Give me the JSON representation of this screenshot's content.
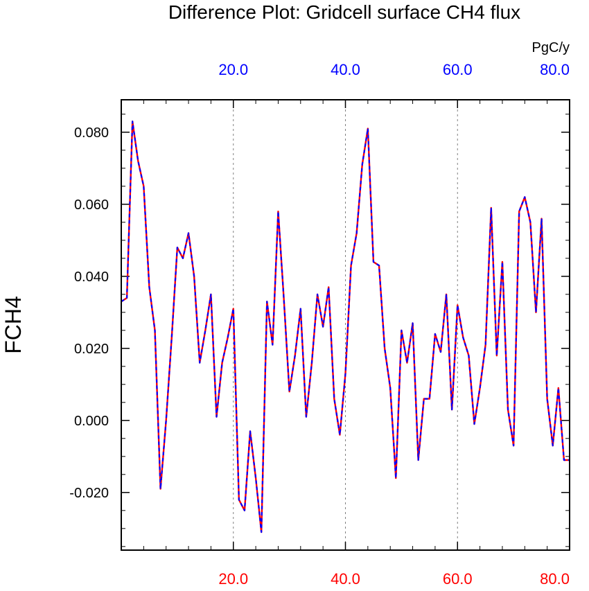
{
  "title": "Difference Plot: Gridcell surface CH4 flux",
  "units": "PgC/y",
  "colors": {
    "series_a": "#ff0000",
    "series_b": "#0000ff",
    "axis": "#000000",
    "grid": "#808080"
  },
  "chart_data": {
    "type": "line",
    "title": "Difference Plot: Gridcell surface CH4 flux",
    "ylabel": "FCH4",
    "xlim": [
      0,
      80
    ],
    "ylim": [
      -0.036,
      0.089
    ],
    "y_ticks": [
      {
        "value": -0.02,
        "label": "-0.020"
      },
      {
        "value": 0.0,
        "label": "0.000"
      },
      {
        "value": 0.02,
        "label": "0.020"
      },
      {
        "value": 0.04,
        "label": "0.040"
      },
      {
        "value": 0.06,
        "label": "0.060"
      },
      {
        "value": 0.08,
        "label": "0.080"
      }
    ],
    "x_ticks_bottom": [
      {
        "value": 20,
        "label": "20.0"
      },
      {
        "value": 40,
        "label": "40.0"
      },
      {
        "value": 60,
        "label": "60.0"
      },
      {
        "value": 80,
        "label": "80.0"
      }
    ],
    "x_ticks_top": [
      {
        "value": 20,
        "label": "20.0"
      },
      {
        "value": 40,
        "label": "40.0"
      },
      {
        "value": 60,
        "label": "60.0"
      },
      {
        "value": 80,
        "label": "80.0"
      }
    ],
    "grid_x": [
      20,
      40,
      60
    ],
    "x": [
      0,
      1,
      2,
      3,
      4,
      5,
      6,
      7,
      8,
      9,
      10,
      11,
      12,
      13,
      14,
      15,
      16,
      17,
      18,
      19,
      20,
      21,
      22,
      23,
      24,
      25,
      26,
      27,
      28,
      29,
      30,
      31,
      32,
      33,
      34,
      35,
      36,
      37,
      38,
      39,
      40,
      41,
      42,
      43,
      44,
      45,
      46,
      47,
      48,
      49,
      50,
      51,
      52,
      53,
      54,
      55,
      56,
      57,
      58,
      59,
      60,
      61,
      62,
      63,
      64,
      65,
      66,
      67,
      68,
      69,
      70,
      71,
      72,
      73,
      74,
      75,
      76,
      77,
      78,
      79,
      80
    ],
    "series": [
      {
        "values": [
          0.033,
          0.034,
          0.083,
          0.072,
          0.065,
          0.037,
          0.025,
          -0.019,
          0.0,
          0.023,
          0.048,
          0.045,
          0.052,
          0.04,
          0.016,
          0.025,
          0.035,
          0.001,
          0.016,
          0.023,
          0.031,
          -0.022,
          -0.025,
          -0.003,
          -0.016,
          -0.031,
          0.033,
          0.021,
          0.058,
          0.034,
          0.008,
          0.018,
          0.031,
          0.001,
          0.016,
          0.035,
          0.026,
          0.037,
          0.006,
          -0.004,
          0.013,
          0.043,
          0.052,
          0.071,
          0.081,
          0.044,
          0.043,
          0.02,
          0.009,
          -0.016,
          0.025,
          0.016,
          0.027,
          -0.011,
          0.006,
          0.006,
          0.024,
          0.019,
          0.035,
          0.003,
          0.032,
          0.023,
          0.018,
          -0.001,
          0.009,
          0.021,
          0.059,
          0.018,
          0.044,
          0.003,
          -0.007,
          0.058,
          0.062,
          0.055,
          0.03,
          0.056,
          0.006,
          -0.007,
          0.009,
          -0.011,
          -0.011
        ]
      },
      {
        "values": [
          0.033,
          0.034,
          0.083,
          0.072,
          0.065,
          0.037,
          0.025,
          -0.019,
          0.0,
          0.023,
          0.048,
          0.045,
          0.052,
          0.04,
          0.016,
          0.025,
          0.035,
          0.001,
          0.016,
          0.023,
          0.031,
          -0.022,
          -0.025,
          -0.003,
          -0.016,
          -0.031,
          0.033,
          0.021,
          0.058,
          0.034,
          0.008,
          0.018,
          0.031,
          0.001,
          0.016,
          0.035,
          0.026,
          0.037,
          0.006,
          -0.004,
          0.013,
          0.043,
          0.052,
          0.071,
          0.081,
          0.044,
          0.043,
          0.02,
          0.009,
          -0.016,
          0.025,
          0.016,
          0.027,
          -0.011,
          0.006,
          0.006,
          0.024,
          0.019,
          0.035,
          0.003,
          0.032,
          0.023,
          0.018,
          -0.001,
          0.009,
          0.021,
          0.059,
          0.018,
          0.044,
          0.003,
          -0.007,
          0.058,
          0.062,
          0.055,
          0.03,
          0.056,
          0.006,
          -0.007,
          0.009,
          -0.011,
          -0.011
        ]
      }
    ]
  }
}
